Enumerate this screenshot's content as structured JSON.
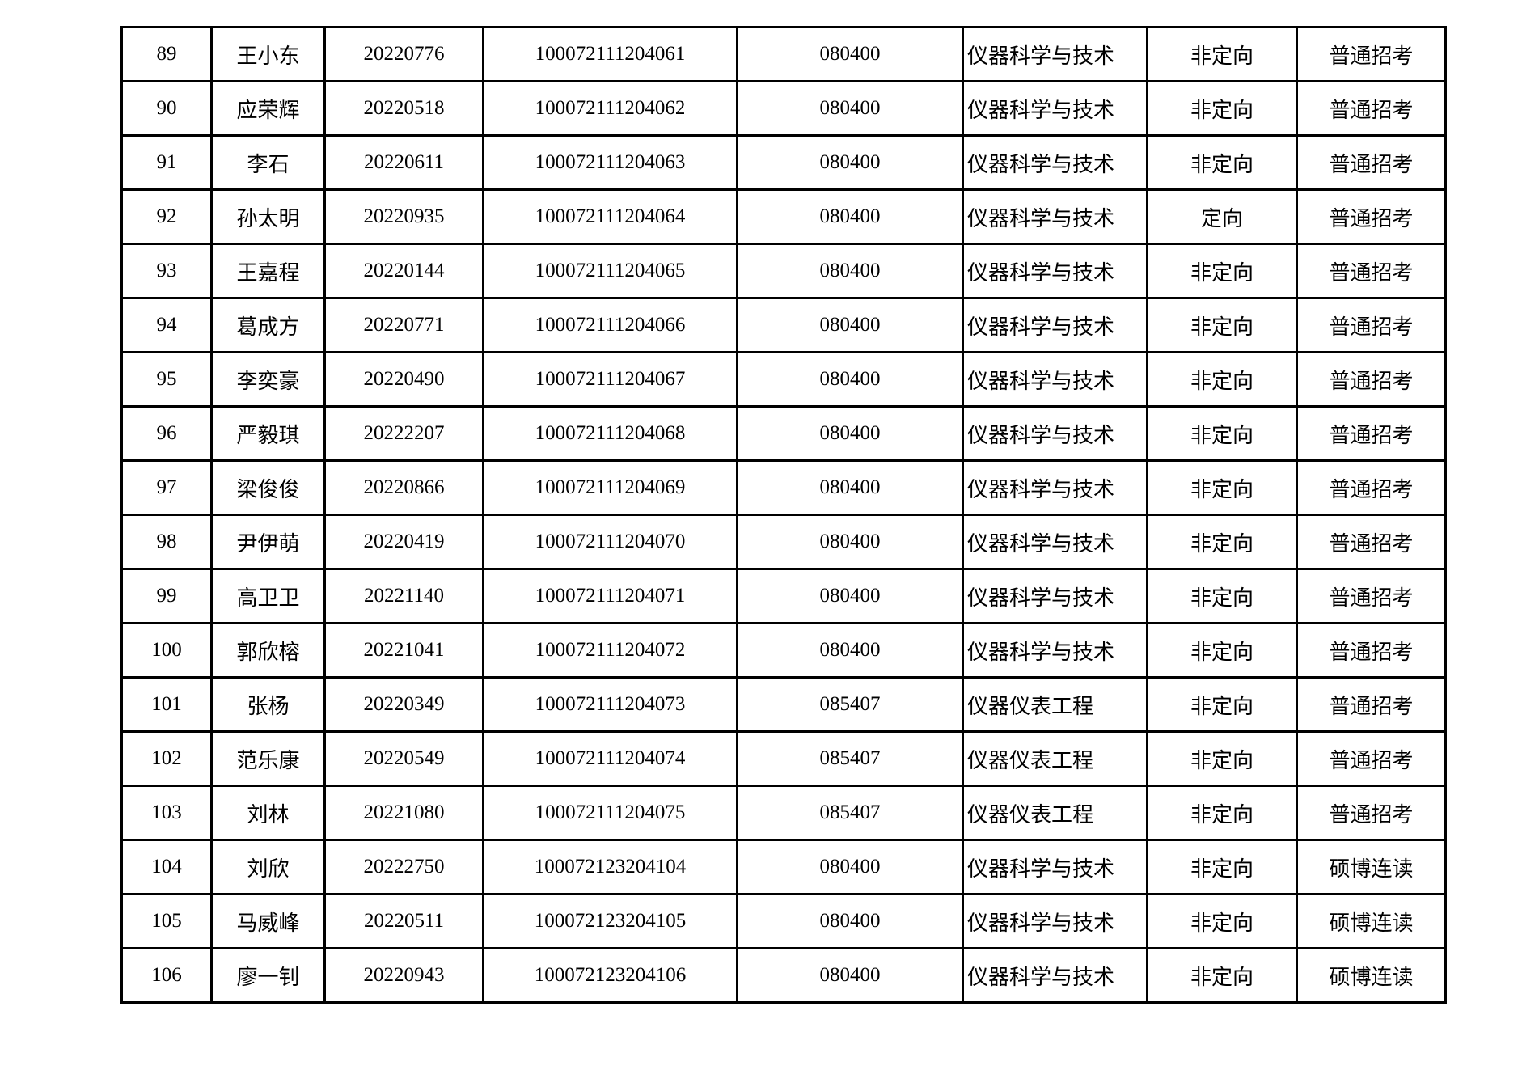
{
  "table": {
    "rows": [
      [
        "89",
        "王小东",
        "20220776",
        "100072111204061",
        "080400",
        "仪器科学与技术",
        "非定向",
        "普通招考"
      ],
      [
        "90",
        "应荣辉",
        "20220518",
        "100072111204062",
        "080400",
        "仪器科学与技术",
        "非定向",
        "普通招考"
      ],
      [
        "91",
        "李石",
        "20220611",
        "100072111204063",
        "080400",
        "仪器科学与技术",
        "非定向",
        "普通招考"
      ],
      [
        "92",
        "孙太明",
        "20220935",
        "100072111204064",
        "080400",
        "仪器科学与技术",
        "定向",
        "普通招考"
      ],
      [
        "93",
        "王嘉程",
        "20220144",
        "100072111204065",
        "080400",
        "仪器科学与技术",
        "非定向",
        "普通招考"
      ],
      [
        "94",
        "葛成方",
        "20220771",
        "100072111204066",
        "080400",
        "仪器科学与技术",
        "非定向",
        "普通招考"
      ],
      [
        "95",
        "李奕豪",
        "20220490",
        "100072111204067",
        "080400",
        "仪器科学与技术",
        "非定向",
        "普通招考"
      ],
      [
        "96",
        "严毅琪",
        "20222207",
        "100072111204068",
        "080400",
        "仪器科学与技术",
        "非定向",
        "普通招考"
      ],
      [
        "97",
        "梁俊俊",
        "20220866",
        "100072111204069",
        "080400",
        "仪器科学与技术",
        "非定向",
        "普通招考"
      ],
      [
        "98",
        "尹伊萌",
        "20220419",
        "100072111204070",
        "080400",
        "仪器科学与技术",
        "非定向",
        "普通招考"
      ],
      [
        "99",
        "高卫卫",
        "20221140",
        "100072111204071",
        "080400",
        "仪器科学与技术",
        "非定向",
        "普通招考"
      ],
      [
        "100",
        "郭欣榕",
        "20221041",
        "100072111204072",
        "080400",
        "仪器科学与技术",
        "非定向",
        "普通招考"
      ],
      [
        "101",
        "张杨",
        "20220349",
        "100072111204073",
        "085407",
        "仪器仪表工程",
        "非定向",
        "普通招考"
      ],
      [
        "102",
        "范乐康",
        "20220549",
        "100072111204074",
        "085407",
        "仪器仪表工程",
        "非定向",
        "普通招考"
      ],
      [
        "103",
        "刘林",
        "20221080",
        "100072111204075",
        "085407",
        "仪器仪表工程",
        "非定向",
        "普通招考"
      ],
      [
        "104",
        "刘欣",
        "20222750",
        "100072123204104",
        "080400",
        "仪器科学与技术",
        "非定向",
        "硕博连读"
      ],
      [
        "105",
        "马威峰",
        "20220511",
        "100072123204105",
        "080400",
        "仪器科学与技术",
        "非定向",
        "硕博连读"
      ],
      [
        "106",
        "廖一钊",
        "20220943",
        "100072123204106",
        "080400",
        "仪器科学与技术",
        "非定向",
        "硕博连读"
      ]
    ]
  }
}
